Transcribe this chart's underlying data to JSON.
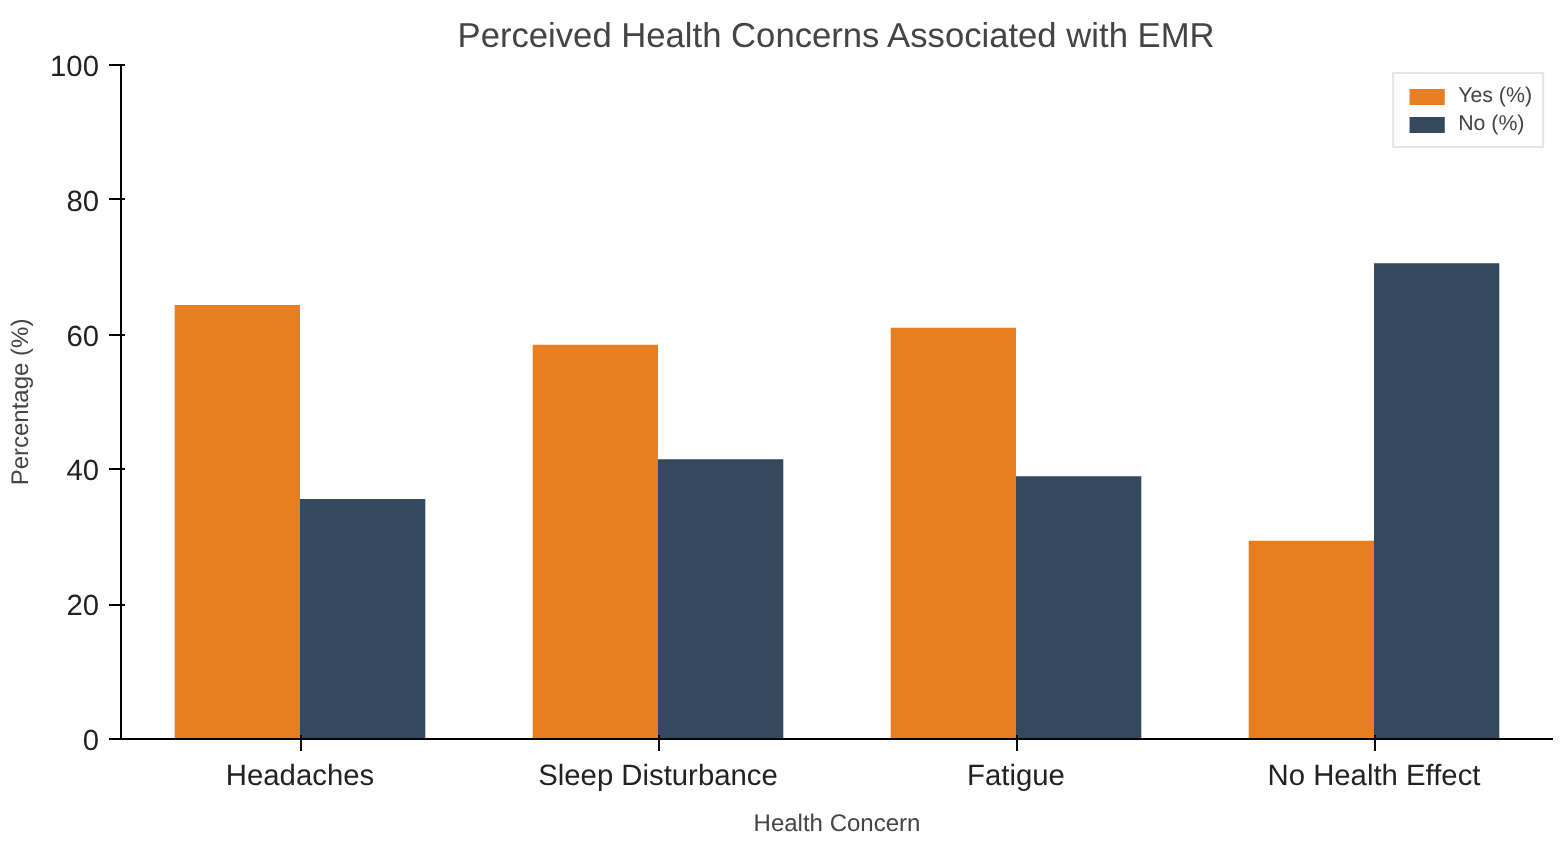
{
  "chart_data": {
    "type": "bar",
    "title": "Perceived Health Concerns Associated with EMR",
    "xlabel": "Health Concern",
    "ylabel": "Percentage (%)",
    "categories": [
      "Headaches",
      "Sleep Disturbance",
      "Fatigue",
      "No Health Effect"
    ],
    "series": [
      {
        "name": "Yes (%)",
        "color": "#e67e22",
        "values": [
          64.4,
          58.5,
          61.0,
          29.4
        ]
      },
      {
        "name": "No (%)",
        "color": "#34495e",
        "values": [
          35.6,
          41.5,
          39.0,
          70.6
        ]
      }
    ],
    "ylim": [
      0,
      100
    ],
    "yticks": [
      0,
      20,
      40,
      60,
      80,
      100
    ],
    "grid": false,
    "legend": "top right"
  }
}
